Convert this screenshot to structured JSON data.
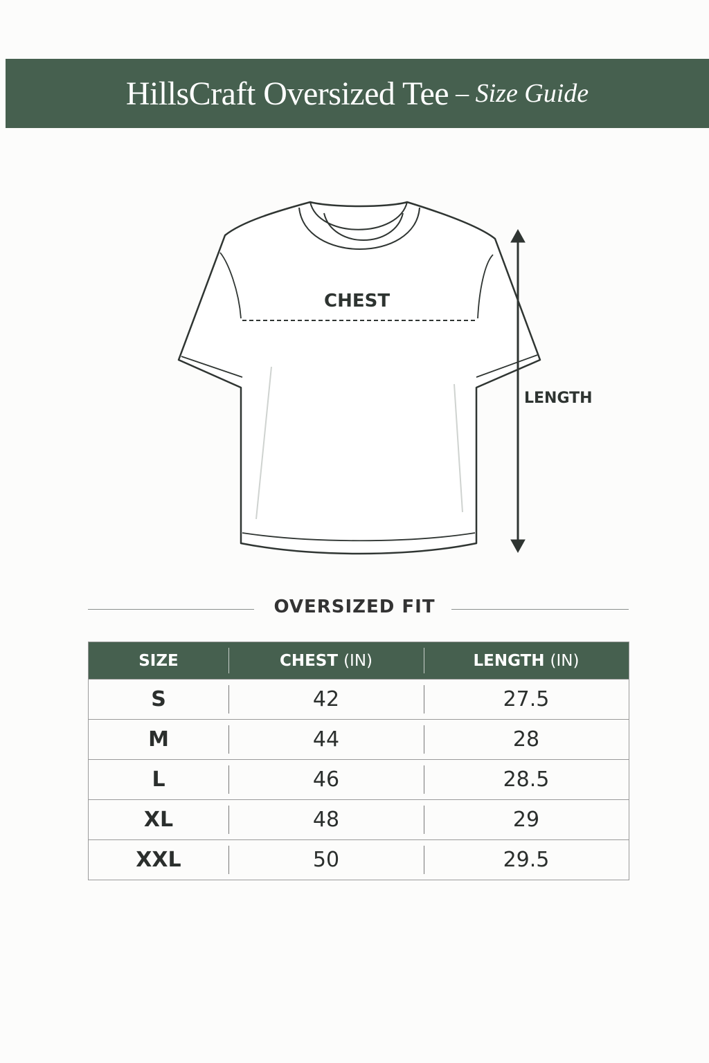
{
  "header": {
    "title": "HillsCraft Oversized Tee",
    "subtitle": "– Size Guide",
    "color": "#46604f"
  },
  "diagram": {
    "chest_label": "CHEST",
    "length_label": "LENGTH"
  },
  "fit_label": "OVERSIZED FIT",
  "table": {
    "headers": [
      {
        "main": "SIZE",
        "unit": ""
      },
      {
        "main": "CHEST",
        "unit": "(IN)"
      },
      {
        "main": "LENGTH",
        "unit": "(IN)"
      }
    ],
    "rows": [
      [
        "S",
        "42",
        "27.5"
      ],
      [
        "M",
        "44",
        "28"
      ],
      [
        "L",
        "46",
        "28.5"
      ],
      [
        "XL",
        "48",
        "29"
      ],
      [
        "XXL",
        "50",
        "29.5"
      ]
    ]
  }
}
